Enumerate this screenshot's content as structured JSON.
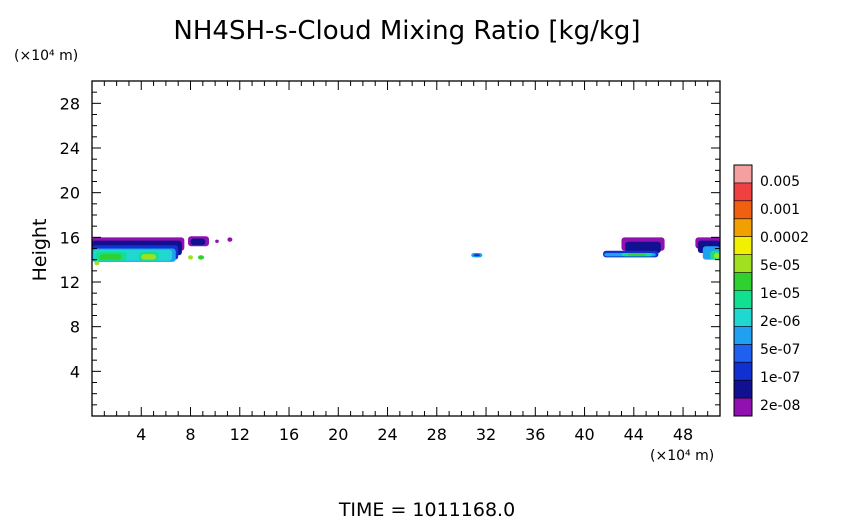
{
  "chart_data": {
    "type": "heatmap",
    "title": "NH4SH-s-Cloud Mixing Ratio [kg/kg]",
    "xlabel": "",
    "ylabel": "Height",
    "x_unit_label": "(×10⁴ m)",
    "y_unit_label": "(×10⁴ m)",
    "xlim": [
      0,
      51
    ],
    "ylim": [
      0,
      30
    ],
    "x_ticks": [
      "4",
      "8",
      "12",
      "16",
      "20",
      "24",
      "28",
      "32",
      "36",
      "40",
      "44",
      "48"
    ],
    "y_ticks": [
      "4",
      "8",
      "12",
      "16",
      "20",
      "24",
      "28"
    ],
    "x_tick_values": [
      4,
      8,
      12,
      16,
      20,
      24,
      28,
      32,
      36,
      40,
      44,
      48
    ],
    "y_tick_values": [
      4,
      8,
      12,
      16,
      20,
      24,
      28
    ],
    "colorbar": {
      "labels": [
        "0.005",
        "0.001",
        "0.0002",
        "5e-05",
        "1e-05",
        "2e-06",
        "5e-07",
        "1e-07",
        "2e-08"
      ],
      "colors": [
        "#f4a0a0",
        "#f04040",
        "#f06010",
        "#f0a000",
        "#f0f000",
        "#a0e020",
        "#30d030",
        "#10e090",
        "#20d8d0",
        "#20a0f0",
        "#2060f0",
        "#1030d0",
        "#101090",
        "#9010b0"
      ]
    },
    "cloud_regions": [
      {
        "x": [
          0.0,
          7.5
        ],
        "height": [
          13.7,
          16.0
        ],
        "level": "1e-05 to 2e-08"
      },
      {
        "x": [
          8.0,
          9.5
        ],
        "height": [
          14.0,
          16.0
        ],
        "level": "2e-06 to 2e-08"
      },
      {
        "x": [
          11.0,
          11.5
        ],
        "height": [
          15.5,
          16.0
        ],
        "level": "2e-08"
      },
      {
        "x": [
          30.8,
          31.7
        ],
        "height": [
          14.2,
          14.6
        ],
        "level": "2e-07"
      },
      {
        "x": [
          41.5,
          46.5
        ],
        "height": [
          14.2,
          16.0
        ],
        "level": "1e-05 to 2e-08"
      },
      {
        "x": [
          49.0,
          51.0
        ],
        "height": [
          14.0,
          16.0
        ],
        "level": "5e-05 to 2e-08"
      }
    ]
  },
  "footer": {
    "time_label": "TIME = 1011168.0"
  }
}
